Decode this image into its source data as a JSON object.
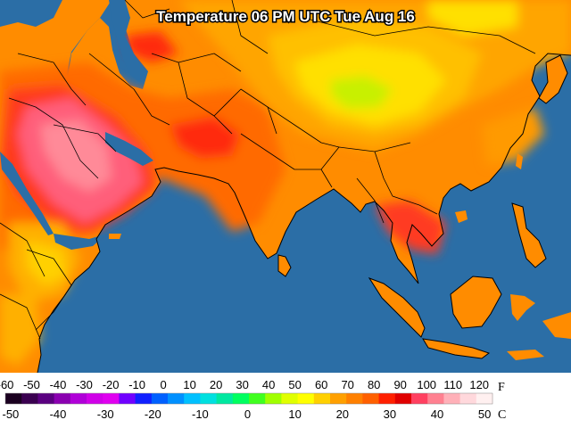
{
  "title": "Temperature 06 PM UTC Tue Aug 16",
  "legend": {
    "f_unit": "F",
    "c_unit": "C",
    "f_ticks": [
      "-60",
      "-50",
      "-40",
      "-30",
      "-20",
      "-10",
      "0",
      "10",
      "20",
      "30",
      "40",
      "50",
      "60",
      "70",
      "80",
      "90",
      "100",
      "110",
      "120"
    ],
    "c_ticks": [
      "-50",
      "-40",
      "-30",
      "-20",
      "-10",
      "0",
      "10",
      "20",
      "30",
      "40",
      "50"
    ],
    "f_range": [
      -60,
      125
    ],
    "colors": [
      "#1a0020",
      "#3a0050",
      "#5a0080",
      "#8a00b0",
      "#b000d8",
      "#d000e8",
      "#e000f0",
      "#7000ff",
      "#1020ff",
      "#0060ff",
      "#0090ff",
      "#00c0ff",
      "#00e0e0",
      "#00e8a0",
      "#00ff60",
      "#40ff20",
      "#a0ff00",
      "#e0ff00",
      "#ffff00",
      "#ffd000",
      "#ffa000",
      "#ff8000",
      "#ff6000",
      "#ff2000",
      "#e00000",
      "#ff4060",
      "#ff8090",
      "#ffb0b8",
      "#ffd8dc",
      "#fff0f0"
    ]
  },
  "map": {
    "ocean_color": "#2b6ea6",
    "regions": [
      {
        "name": "Arabian Peninsula",
        "temp_f": "110"
      },
      {
        "name": "Iran",
        "temp_f": "100"
      },
      {
        "name": "India",
        "temp_f": "90"
      },
      {
        "name": "Tibetan Plateau",
        "temp_f": "60"
      },
      {
        "name": "China",
        "temp_f": "80"
      },
      {
        "name": "Southeast Asia",
        "temp_f": "85"
      },
      {
        "name": "Horn of Africa",
        "temp_f": "85"
      }
    ]
  }
}
